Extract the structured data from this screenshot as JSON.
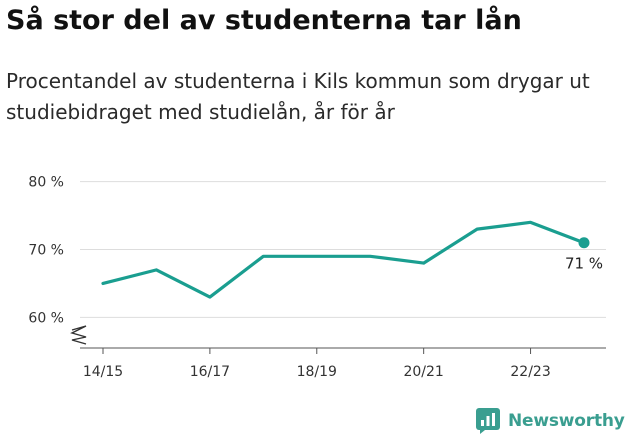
{
  "header": {
    "title": "Så stor del av studenterna tar lån",
    "subtitle": "Procentandel av studenterna i Kils kommun som drygar ut studiebidraget med studielån, år för år"
  },
  "brand": {
    "name": "Newsworthy",
    "icon": "newsworthy-logo-icon",
    "color": "#3a9e90"
  },
  "chart_data": {
    "type": "line",
    "title": "Så stor del av studenterna tar lån",
    "subtitle": "Procentandel av studenterna i Kils kommun som drygar ut studiebidraget med studielån, år för år",
    "xlabel": "",
    "ylabel": "",
    "x": [
      "14/15",
      "15/16",
      "16/17",
      "17/18",
      "18/19",
      "19/20",
      "20/21",
      "21/22",
      "22/23",
      "23/24"
    ],
    "x_tick_labels": [
      "14/15",
      "16/17",
      "18/19",
      "20/21",
      "22/23"
    ],
    "series": [
      {
        "values": [
          65,
          67,
          63,
          69,
          69,
          69,
          68,
          73,
          74,
          71
        ],
        "color": "#1a9e90"
      }
    ],
    "y_tick_labels": [
      "60 %",
      "70 %",
      "80 %"
    ],
    "y_ticks": [
      60,
      70,
      80
    ],
    "ylim": [
      55.5,
      82
    ],
    "y_axis_break": true,
    "grid": true,
    "end_label": "71 %"
  }
}
